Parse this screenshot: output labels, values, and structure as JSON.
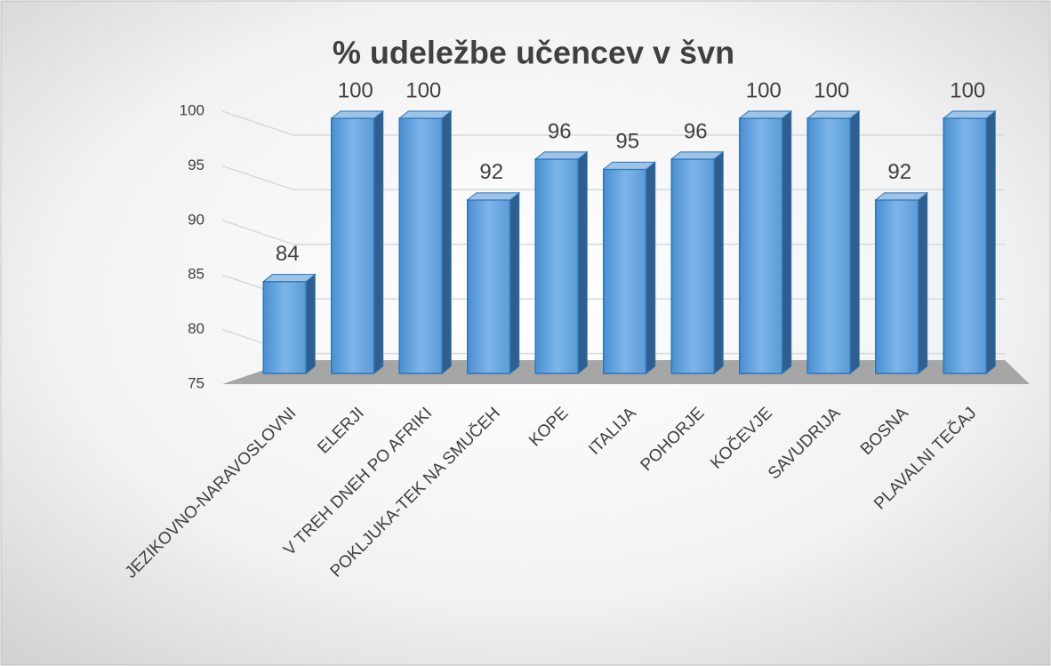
{
  "chart_data": {
    "type": "bar",
    "title": "% udeležbe učencev v švn",
    "categories": [
      "JEZIKOVNO-NARAVOSLOVNI",
      "ELERJI",
      "V TREH DNEH PO AFRIKI",
      "POKLJUKA-TEK NA SMUČEH",
      "KOPE",
      "ITALIJA",
      "POHORJE",
      "KOČEVJE",
      "SAVUDRIJA",
      "BOSNA",
      "PLAVALNI TEČAJ"
    ],
    "values": [
      84,
      100,
      100,
      92,
      96,
      95,
      96,
      100,
      100,
      92,
      100
    ],
    "color": "#5b9bd5",
    "ylim": [
      75,
      100
    ],
    "yticks": [
      75,
      80,
      85,
      90,
      95,
      100
    ],
    "grid": true
  }
}
